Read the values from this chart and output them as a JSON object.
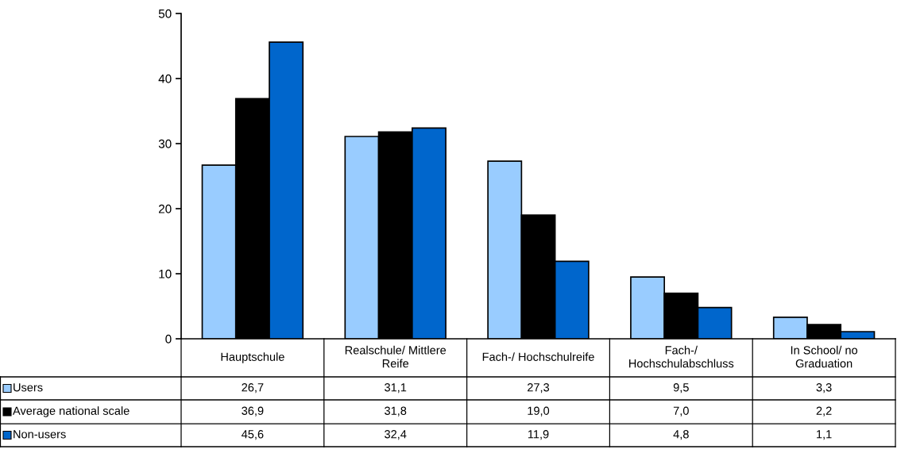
{
  "chart_data": {
    "type": "bar",
    "categories": [
      "Hauptschule",
      "Realschule/ Mittlere Reife",
      "Fach-/ Hochschulreife",
      "Fach-/ Hochschulabschluss",
      "In School/ no Graduation"
    ],
    "series": [
      {
        "name": "Users",
        "color": "#99ccff",
        "values": [
          26.7,
          31.1,
          27.3,
          9.5,
          3.3
        ],
        "value_labels": [
          "26,7",
          "31,1",
          "27,3",
          "9,5",
          "3,3"
        ]
      },
      {
        "name": "Average national scale",
        "color": "#000000",
        "values": [
          36.9,
          31.8,
          19.0,
          7.0,
          2.2
        ],
        "value_labels": [
          "36,9",
          "31,8",
          "19,0",
          "7,0",
          "2,2"
        ]
      },
      {
        "name": "Non-users",
        "color": "#0066cc",
        "values": [
          45.6,
          32.4,
          11.9,
          4.8,
          1.1
        ],
        "value_labels": [
          "45,6",
          "32,4",
          "11,9",
          "4,8",
          "1,1"
        ]
      }
    ],
    "ylim": [
      0,
      50
    ],
    "yticks": [
      0,
      10,
      20,
      30,
      40,
      50
    ],
    "grid": false,
    "legend": "bottom left"
  }
}
